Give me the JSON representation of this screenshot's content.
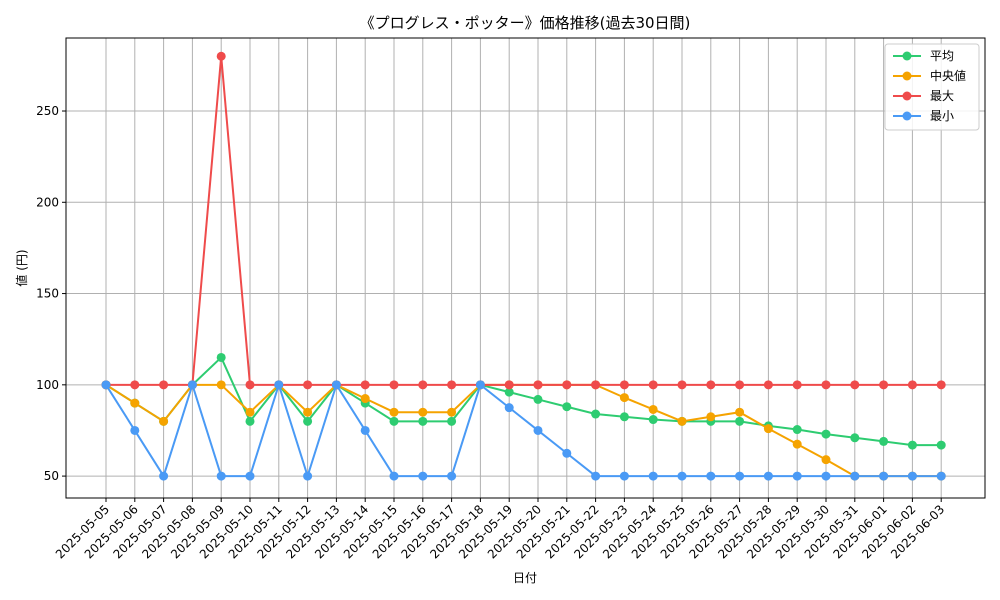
{
  "chart_data": {
    "type": "line",
    "title": "《プログレス・ポッター》価格推移(過去30日間)",
    "xlabel": "日付",
    "ylabel": "値 (円)",
    "ylim": [
      38,
      290
    ],
    "yticks": [
      50,
      100,
      150,
      200,
      250
    ],
    "grid": true,
    "legend_position": "top-right",
    "categories": [
      "2025-05-05",
      "2025-05-06",
      "2025-05-07",
      "2025-05-08",
      "2025-05-09",
      "2025-05-10",
      "2025-05-11",
      "2025-05-12",
      "2025-05-13",
      "2025-05-14",
      "2025-05-15",
      "2025-05-16",
      "2025-05-17",
      "2025-05-18",
      "2025-05-19",
      "2025-05-20",
      "2025-05-21",
      "2025-05-22",
      "2025-05-23",
      "2025-05-24",
      "2025-05-25",
      "2025-05-26",
      "2025-05-27",
      "2025-05-28",
      "2025-05-29",
      "2025-05-30",
      "2025-05-31",
      "2025-06-01",
      "2025-06-02",
      "2025-06-03"
    ],
    "series": [
      {
        "name": "平均",
        "color": "#2ecc71",
        "values": [
          100,
          90,
          80,
          100,
          115,
          80,
          100,
          80,
          100,
          90,
          80,
          80,
          80,
          100,
          96,
          92,
          88,
          84,
          82.5,
          81,
          80,
          80,
          80,
          77.5,
          75.5,
          73,
          71,
          69,
          67,
          67
        ]
      },
      {
        "name": "中央値",
        "color": "#f5a300",
        "values": [
          100,
          90,
          80,
          100,
          100,
          85,
          100,
          85,
          100,
          92.5,
          85,
          85,
          85,
          100,
          100,
          100,
          100,
          100,
          93,
          86.5,
          80,
          82.5,
          85,
          76,
          67.5,
          59,
          50,
          50,
          50,
          50
        ]
      },
      {
        "name": "最大",
        "color": "#ef4b4b",
        "values": [
          100,
          100,
          100,
          100,
          280,
          100,
          100,
          100,
          100,
          100,
          100,
          100,
          100,
          100,
          100,
          100,
          100,
          100,
          100,
          100,
          100,
          100,
          100,
          100,
          100,
          100,
          100,
          100,
          100,
          100
        ]
      },
      {
        "name": "最小",
        "color": "#4a9af5",
        "values": [
          100,
          75,
          50,
          100,
          50,
          50,
          100,
          50,
          100,
          75,
          50,
          50,
          50,
          100,
          87.5,
          75,
          62.5,
          50,
          50,
          50,
          50,
          50,
          50,
          50,
          50,
          50,
          50,
          50,
          50,
          50
        ]
      }
    ]
  }
}
